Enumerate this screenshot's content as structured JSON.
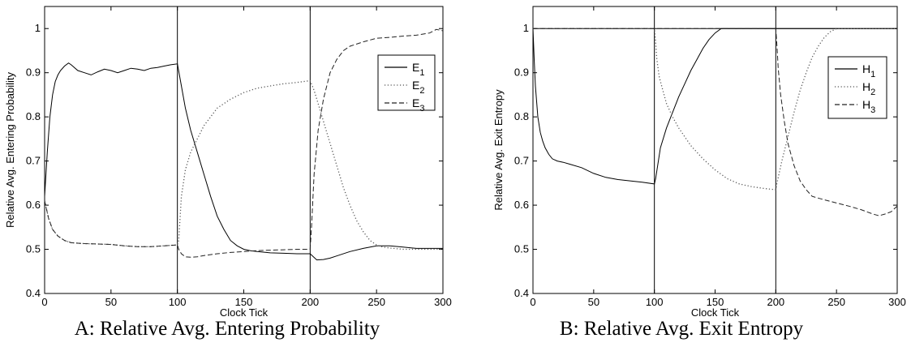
{
  "chart_data": [
    {
      "type": "line",
      "caption": "A: Relative Avg. Entering Probability",
      "xlabel": "Clock Tick",
      "ylabel": "Relative Avg. Entering Probability",
      "xlim": [
        0,
        300
      ],
      "ylim": [
        0.4,
        1.05
      ],
      "xticks": [
        0,
        50,
        100,
        150,
        200,
        250,
        300
      ],
      "yticks": [
        0.4,
        0.5,
        0.6,
        0.7,
        0.8,
        0.9,
        1
      ],
      "xtick_labels": [
        "0",
        "50",
        "100",
        "150",
        "200",
        "250",
        "300"
      ],
      "ytick_labels": [
        "0.4",
        "0.5",
        "0.6",
        "0.7",
        "0.8",
        "0.9",
        "1"
      ],
      "vlines": [
        100,
        200
      ],
      "hlines": [],
      "grid": false,
      "legend_position": "upper right",
      "series": [
        {
          "name": "E",
          "sub": "1",
          "style": "solid",
          "x": [
            0,
            2,
            4,
            6,
            8,
            10,
            12,
            15,
            18,
            20,
            25,
            30,
            35,
            40,
            45,
            50,
            55,
            60,
            65,
            70,
            75,
            80,
            85,
            90,
            95,
            100,
            103,
            106,
            110,
            115,
            120,
            125,
            130,
            135,
            140,
            145,
            150,
            155,
            160,
            170,
            180,
            190,
            200,
            205,
            210,
            215,
            220,
            230,
            240,
            250,
            260,
            270,
            280,
            290,
            300
          ],
          "y": [
            0.62,
            0.72,
            0.8,
            0.85,
            0.88,
            0.895,
            0.905,
            0.915,
            0.922,
            0.918,
            0.905,
            0.9,
            0.895,
            0.902,
            0.908,
            0.905,
            0.9,
            0.905,
            0.91,
            0.908,
            0.905,
            0.91,
            0.912,
            0.915,
            0.918,
            0.92,
            0.87,
            0.82,
            0.77,
            0.72,
            0.67,
            0.62,
            0.575,
            0.545,
            0.52,
            0.508,
            0.5,
            0.497,
            0.495,
            0.492,
            0.491,
            0.49,
            0.49,
            0.476,
            0.477,
            0.48,
            0.485,
            0.495,
            0.502,
            0.508,
            0.508,
            0.505,
            0.502,
            0.502,
            0.502
          ]
        },
        {
          "name": "E",
          "sub": "2",
          "style": "dotted",
          "x": [
            0,
            3,
            6,
            10,
            15,
            20,
            30,
            40,
            50,
            60,
            70,
            80,
            90,
            100,
            101,
            103,
            106,
            110,
            115,
            120,
            125,
            130,
            140,
            150,
            160,
            170,
            180,
            190,
            200,
            203,
            206,
            210,
            215,
            220,
            225,
            230,
            235,
            240,
            245,
            250,
            255,
            260,
            270,
            280,
            290,
            300
          ],
          "y": [
            0.61,
            0.57,
            0.545,
            0.53,
            0.52,
            0.515,
            0.513,
            0.512,
            0.511,
            0.508,
            0.506,
            0.506,
            0.508,
            0.51,
            0.52,
            0.62,
            0.68,
            0.72,
            0.75,
            0.78,
            0.8,
            0.82,
            0.84,
            0.855,
            0.865,
            0.87,
            0.875,
            0.878,
            0.882,
            0.86,
            0.83,
            0.79,
            0.74,
            0.69,
            0.64,
            0.6,
            0.565,
            0.54,
            0.52,
            0.51,
            0.505,
            0.503,
            0.5,
            0.5,
            0.5,
            0.5
          ]
        },
        {
          "name": "E",
          "sub": "3",
          "style": "dashed",
          "x": [
            0,
            3,
            6,
            10,
            15,
            20,
            30,
            40,
            50,
            60,
            70,
            80,
            90,
            100,
            101,
            103,
            106,
            110,
            115,
            120,
            130,
            140,
            150,
            160,
            170,
            180,
            190,
            200,
            201,
            203,
            206,
            210,
            215,
            220,
            225,
            230,
            240,
            250,
            260,
            270,
            280,
            290,
            295,
            300
          ],
          "y": [
            0.61,
            0.57,
            0.545,
            0.53,
            0.52,
            0.515,
            0.513,
            0.512,
            0.511,
            0.508,
            0.506,
            0.506,
            0.508,
            0.51,
            0.5,
            0.49,
            0.483,
            0.482,
            0.483,
            0.486,
            0.49,
            0.493,
            0.495,
            0.497,
            0.498,
            0.499,
            0.5,
            0.5,
            0.55,
            0.67,
            0.77,
            0.84,
            0.9,
            0.93,
            0.95,
            0.96,
            0.97,
            0.978,
            0.98,
            0.983,
            0.985,
            0.99,
            0.998,
            0.995
          ]
        }
      ]
    },
    {
      "type": "line",
      "caption": "B: Relative Avg. Exit Entropy",
      "xlabel": "Clock Tick",
      "ylabel": "Relative Avg. Exit Entropy",
      "xlim": [
        0,
        300
      ],
      "ylim": [
        0.4,
        1.05
      ],
      "xticks": [
        0,
        50,
        100,
        150,
        200,
        250,
        300
      ],
      "yticks": [
        0.4,
        0.5,
        0.6,
        0.7,
        0.8,
        0.9,
        1
      ],
      "xtick_labels": [
        "0",
        "50",
        "100",
        "150",
        "200",
        "250",
        "300"
      ],
      "ytick_labels": [
        "0.4",
        "0.5",
        "0.6",
        "0.7",
        "0.8",
        "0.9",
        "1"
      ],
      "vlines": [
        100,
        200
      ],
      "hlines": [
        1.0
      ],
      "grid": false,
      "legend_position": "upper right",
      "series": [
        {
          "name": "H",
          "sub": "1",
          "style": "solid",
          "x": [
            0,
            1,
            2,
            4,
            6,
            8,
            10,
            13,
            16,
            20,
            25,
            30,
            40,
            50,
            60,
            70,
            80,
            90,
            100,
            101,
            105,
            110,
            115,
            120,
            125,
            130,
            135,
            140,
            145,
            150,
            155,
            160,
            200,
            300
          ],
          "y": [
            1.0,
            0.93,
            0.87,
            0.8,
            0.765,
            0.745,
            0.73,
            0.715,
            0.705,
            0.7,
            0.697,
            0.693,
            0.685,
            0.672,
            0.663,
            0.658,
            0.655,
            0.652,
            0.648,
            0.66,
            0.73,
            0.775,
            0.81,
            0.845,
            0.875,
            0.905,
            0.93,
            0.955,
            0.975,
            0.99,
            1.0,
            1.0,
            1.0,
            1.0
          ]
        },
        {
          "name": "H",
          "sub": "2",
          "style": "dotted",
          "x": [
            0,
            100,
            101,
            102,
            104,
            107,
            110,
            115,
            120,
            130,
            140,
            150,
            160,
            170,
            180,
            190,
            200,
            201,
            205,
            210,
            215,
            220,
            225,
            230,
            235,
            240,
            245,
            250,
            255,
            300
          ],
          "y": [
            1.0,
            1.0,
            0.97,
            0.93,
            0.89,
            0.86,
            0.83,
            0.8,
            0.775,
            0.735,
            0.705,
            0.68,
            0.66,
            0.648,
            0.642,
            0.638,
            0.635,
            0.65,
            0.7,
            0.755,
            0.81,
            0.86,
            0.9,
            0.935,
            0.96,
            0.98,
            0.993,
            1.0,
            1.0,
            1.0
          ]
        },
        {
          "name": "H",
          "sub": "3",
          "style": "dashed",
          "x": [
            0,
            200,
            201,
            202,
            204,
            207,
            210,
            215,
            220,
            225,
            230,
            240,
            250,
            260,
            270,
            280,
            285,
            290,
            295,
            300
          ],
          "y": [
            1.0,
            1.0,
            0.96,
            0.91,
            0.85,
            0.79,
            0.74,
            0.69,
            0.655,
            0.635,
            0.62,
            0.612,
            0.605,
            0.598,
            0.59,
            0.58,
            0.576,
            0.58,
            0.585,
            0.598
          ]
        }
      ]
    }
  ]
}
